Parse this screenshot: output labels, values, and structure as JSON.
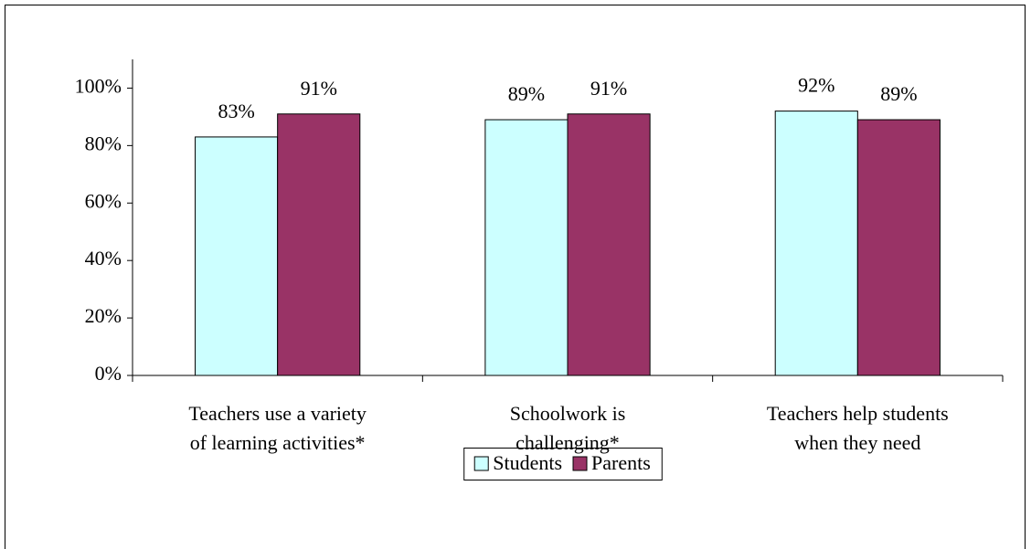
{
  "chart_data": {
    "type": "bar",
    "categories": [
      "Teachers use a variety\nof learning activities*",
      "Schoolwork is\nchallenging*",
      "Teachers help students\nwhen they need"
    ],
    "series": [
      {
        "name": "Students",
        "color": "#ccffff",
        "values": [
          83,
          89,
          92
        ],
        "value_labels": [
          "83%",
          "89%",
          "92%"
        ]
      },
      {
        "name": "Parents",
        "color": "#993366",
        "values": [
          91,
          91,
          89
        ],
        "value_labels": [
          "91%",
          "91%",
          "89%"
        ]
      }
    ],
    "ylim": [
      0,
      110
    ],
    "yticks": [
      {
        "value": 0,
        "label": "0%"
      },
      {
        "value": 20,
        "label": "20%"
      },
      {
        "value": 40,
        "label": "40%"
      },
      {
        "value": 60,
        "label": "60%"
      },
      {
        "value": 80,
        "label": "80%"
      },
      {
        "value": 100,
        "label": "100%"
      }
    ],
    "grid": false,
    "legend": "bottom"
  }
}
